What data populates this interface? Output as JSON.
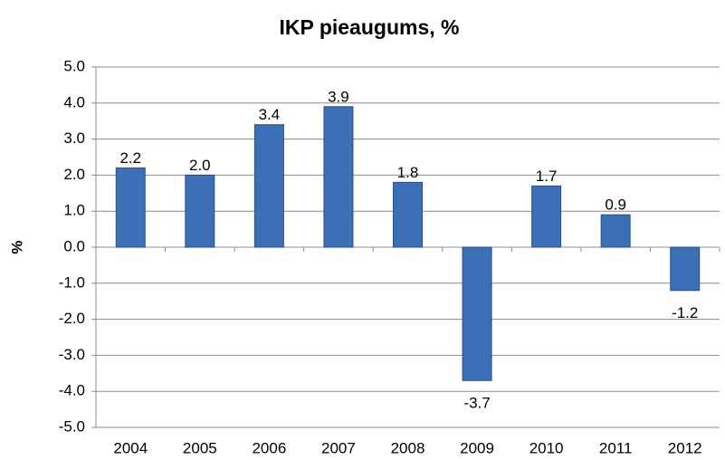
{
  "chart_data": {
    "type": "bar",
    "title": "IKP pieaugums, %",
    "y_label": "%",
    "categories": [
      "2004",
      "2005",
      "2006",
      "2007",
      "2008",
      "2009",
      "2010",
      "2011",
      "2012"
    ],
    "values": [
      2.2,
      2.0,
      3.4,
      3.9,
      1.8,
      -3.7,
      1.7,
      0.9,
      -1.2
    ],
    "value_labels": [
      "2.2",
      "2.0",
      "3.4",
      "3.9",
      "1.8",
      "-3.7",
      "1.7",
      "0.9",
      "-1.2"
    ],
    "color": "#3d6fb6",
    "ylim": [
      -5,
      5
    ],
    "yticks": [
      {
        "value": -5,
        "label": "-5.0"
      },
      {
        "value": -4,
        "label": "-4.0"
      },
      {
        "value": -3,
        "label": "-3.0"
      },
      {
        "value": -2,
        "label": "-2.0"
      },
      {
        "value": -1,
        "label": "-1.0"
      },
      {
        "value": 0,
        "label": "0.0"
      },
      {
        "value": 1,
        "label": "1.0"
      },
      {
        "value": 2,
        "label": "2.0"
      },
      {
        "value": 3,
        "label": "3.0"
      },
      {
        "value": 4,
        "label": "4.0"
      },
      {
        "value": 5,
        "label": "5.0"
      }
    ],
    "grid": true
  }
}
